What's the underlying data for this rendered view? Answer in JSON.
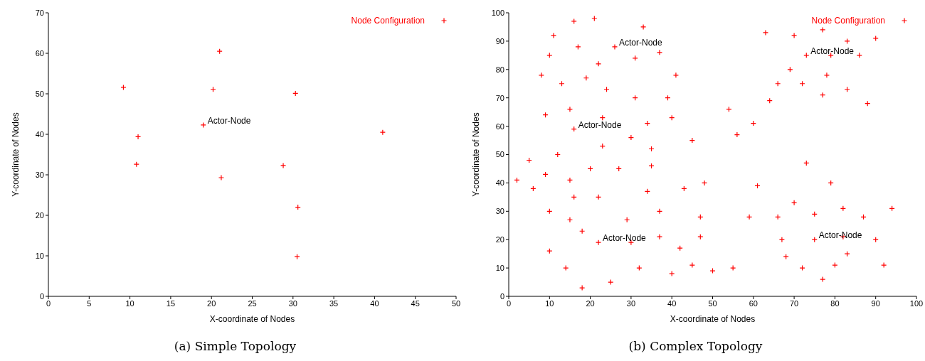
{
  "chart_data": [
    {
      "type": "scatter",
      "title": "(a) Simple Topology",
      "xlabel": "X-coordinate of Nodes",
      "ylabel": "Y-coordinate of Nodes",
      "xlim": [
        0,
        50
      ],
      "xticks": [
        0,
        5,
        10,
        15,
        20,
        25,
        30,
        35,
        40,
        45,
        50
      ],
      "ylim": [
        0,
        70
      ],
      "yticks": [
        0,
        10,
        20,
        30,
        40,
        50,
        60,
        70
      ],
      "marker": "cross",
      "legend": "top right",
      "grid": false,
      "annotations": [
        {
          "text": "Actor-Node",
          "x": 19.0,
          "y": 42.3
        }
      ],
      "series": [
        {
          "name": "Node Configuration",
          "color": "#ff0000",
          "x": [
            21.0,
            9.2,
            20.2,
            30.3,
            19.0,
            11.0,
            41.0,
            10.8,
            28.8,
            21.2,
            30.6,
            30.5
          ],
          "values": [
            60.5,
            51.6,
            51.1,
            50.1,
            42.3,
            39.4,
            40.5,
            32.6,
            32.3,
            29.3,
            22.0,
            9.8
          ]
        }
      ]
    },
    {
      "type": "scatter",
      "title": "(b) Complex Topology",
      "xlabel": "X-coordinate of Nodes",
      "ylabel": "Y-coordinate of Nodes",
      "xlim": [
        0,
        100
      ],
      "xticks": [
        0,
        10,
        20,
        30,
        40,
        50,
        60,
        70,
        80,
        90,
        100
      ],
      "ylim": [
        0,
        100
      ],
      "yticks": [
        0,
        10,
        20,
        30,
        40,
        50,
        60,
        70,
        80,
        90,
        100
      ],
      "marker": "cross",
      "legend": "top right",
      "grid": false,
      "annotations": [
        {
          "text": "Actor-Node",
          "x": 26,
          "y": 88
        },
        {
          "text": "Actor-Node",
          "x": 16,
          "y": 59
        },
        {
          "text": "Actor-Node",
          "x": 22,
          "y": 19
        },
        {
          "text": "Actor-Node",
          "x": 73,
          "y": 85
        },
        {
          "text": "Actor-Node",
          "x": 75,
          "y": 20
        }
      ],
      "series": [
        {
          "name": "Node Configuration",
          "color": "#ff0000",
          "x": [
            16,
            21,
            33,
            11,
            17,
            26,
            37,
            10,
            31,
            22,
            8,
            41,
            13,
            19,
            24,
            31,
            39,
            15,
            9,
            23,
            40,
            34,
            16,
            30,
            45,
            23,
            35,
            12,
            63,
            70,
            77,
            83,
            90,
            73,
            79,
            86,
            69,
            78,
            66,
            72,
            77,
            83,
            88,
            64,
            54,
            60,
            56,
            5,
            2,
            9,
            20,
            27,
            35,
            15,
            6,
            16,
            22,
            34,
            43,
            48,
            10,
            15,
            29,
            37,
            47,
            18,
            47,
            37,
            22,
            30,
            42,
            10,
            14,
            32,
            45,
            40,
            50,
            25,
            18,
            73,
            61,
            79,
            70,
            59,
            66,
            75,
            82,
            87,
            94,
            67,
            75,
            82,
            90,
            83,
            68,
            80,
            92,
            72,
            77,
            55
          ],
          "values": [
            97,
            98,
            95,
            92,
            88,
            88,
            86,
            85,
            84,
            82,
            78,
            78,
            75,
            77,
            73,
            70,
            70,
            66,
            64,
            63,
            63,
            61,
            59,
            56,
            55,
            53,
            52,
            50,
            93,
            92,
            94,
            90,
            91,
            85,
            85,
            85,
            80,
            78,
            75,
            75,
            71,
            73,
            68,
            69,
            66,
            61,
            57,
            48,
            41,
            43,
            45,
            45,
            46,
            41,
            38,
            35,
            35,
            37,
            38,
            40,
            30,
            27,
            27,
            30,
            28,
            23,
            21,
            21,
            19,
            19,
            17,
            16,
            10,
            10,
            11,
            8,
            9,
            5,
            3,
            47,
            39,
            40,
            33,
            28,
            28,
            29,
            31,
            28,
            31,
            20,
            20,
            21,
            20,
            15,
            14,
            11,
            11,
            10,
            6,
            10
          ]
        }
      ]
    }
  ]
}
